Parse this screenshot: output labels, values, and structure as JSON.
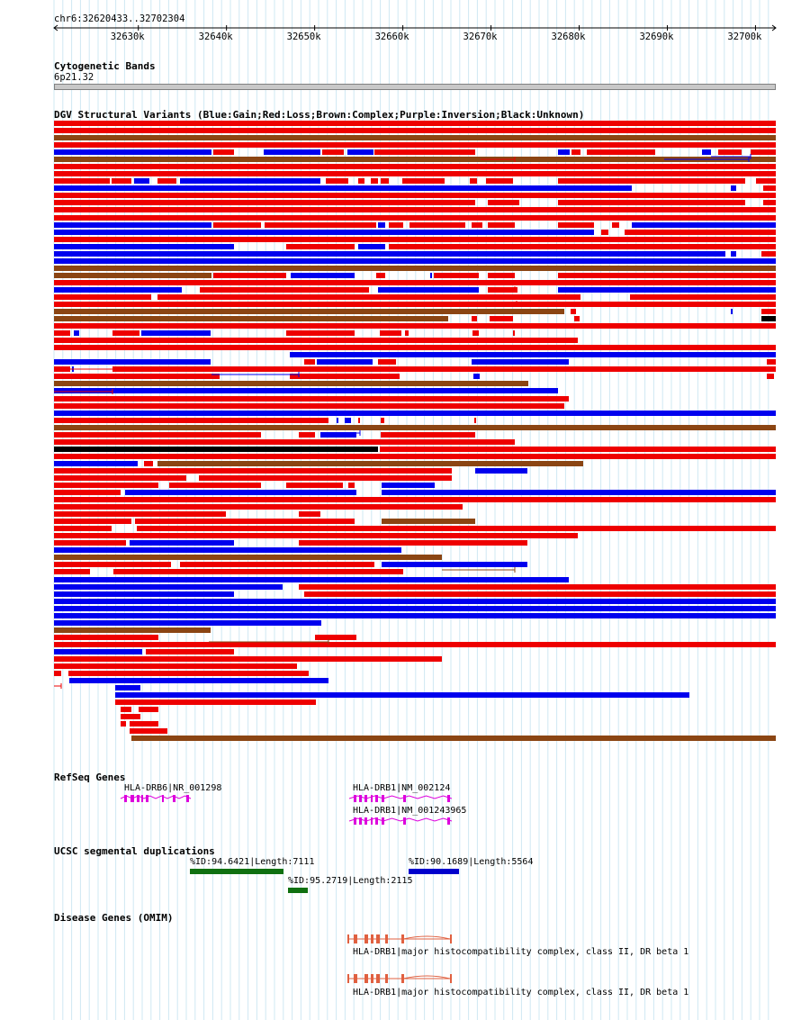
{
  "ruler": {
    "location": "chr6:32620433..32702304",
    "start": 32620433,
    "end": 32702304,
    "ticks": [
      "32630k",
      "32640k",
      "32650k",
      "32660k",
      "32670k",
      "32680k",
      "32690k",
      "32700k"
    ]
  },
  "cytoband": {
    "title": "Cytogenetic Bands",
    "band": "6p21.32"
  },
  "dgv": {
    "title": "DGV Structural Variants (Blue:Gain;Red:Loss;Brown:Complex;Purple:Inversion;Black:Unknown)",
    "colors": {
      "gain": "#0000ee",
      "loss": "#ee0000",
      "complex": "#8b4513",
      "inversion": "#800080",
      "unknown": "#000000"
    }
  },
  "refseq": {
    "title": "RefSeq Genes",
    "genes": [
      {
        "label": "HLA-DRB6|NR_001298"
      },
      {
        "label": "HLA-DRB1|NM_002124"
      },
      {
        "label": "HLA-DRB1|NM_001243965"
      }
    ],
    "color": "#dd00dd"
  },
  "segdup": {
    "title": "UCSC segmental duplications",
    "items": [
      {
        "label": "%ID:94.6421|Length:7111",
        "color": "#107010"
      },
      {
        "label": "%ID:90.1689|Length:5564",
        "color": "#0000cc"
      },
      {
        "label": "%ID:95.2719|Length:2115",
        "color": "#107010"
      }
    ]
  },
  "omim": {
    "title": "Disease Genes (OMIM)",
    "genes": [
      {
        "label": "HLA-DRB1|major histocompatibility complex, class II, DR beta 1"
      },
      {
        "label": "HLA-DRB1|major histocompatibility complex, class II, DR beta 1"
      }
    ],
    "color": "#e06040"
  }
}
